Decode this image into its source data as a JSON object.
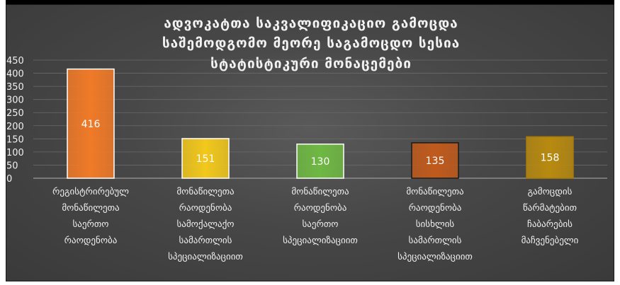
{
  "chart_data": {
    "type": "bar",
    "title_lines": [
      "ადვოკატთა საკვალიფიკაციო გამოცდა",
      "საშემოდგომო მეორე საგამოცდო სესია",
      "სტატისტიკური მონაცემები"
    ],
    "categories": [
      [
        "რეგისტრირებულ",
        "მონაწილეთა",
        "საერთო",
        "რაოდენობა"
      ],
      [
        "მონაწილეთა",
        "რაოდენობა",
        "სამოქალაქო",
        "სამართლის",
        "სპეციალიზაციით"
      ],
      [
        "მონაწილეთა",
        "რაოდენობა",
        "საერთო",
        "სპეციალიზაციით"
      ],
      [
        "მონაწილეთა",
        "რაოდენობა",
        "სისხლის",
        "სამართლის",
        "სპეციალიზაციით"
      ],
      [
        "გამოცდის",
        "წარმატებით",
        "ჩაბარების",
        "მაჩვენებელი"
      ]
    ],
    "values": [
      416,
      151,
      130,
      135,
      158
    ],
    "data_labels": [
      "416",
      "151",
      "130",
      "135",
      "158"
    ],
    "bar_colors": [
      "#f07a28",
      "#f2c81c",
      "#6fb843",
      "#c05a1c",
      "#b88a10"
    ],
    "bar_border_colors": [
      "#ffffff",
      "#ffffff",
      "#ffffff",
      "#1a1a1a",
      "#a87a08"
    ],
    "label_colors": [
      "#ffffff",
      "#ffffff",
      "#ffffff",
      "#ffffff",
      "#ffffff"
    ],
    "yticks": [
      "0",
      "50",
      "100",
      "150",
      "200",
      "250",
      "300",
      "350",
      "400",
      "450"
    ],
    "ylim": [
      0,
      450
    ],
    "grid": true,
    "legend": "none",
    "xlabel": "",
    "ylabel": ""
  }
}
